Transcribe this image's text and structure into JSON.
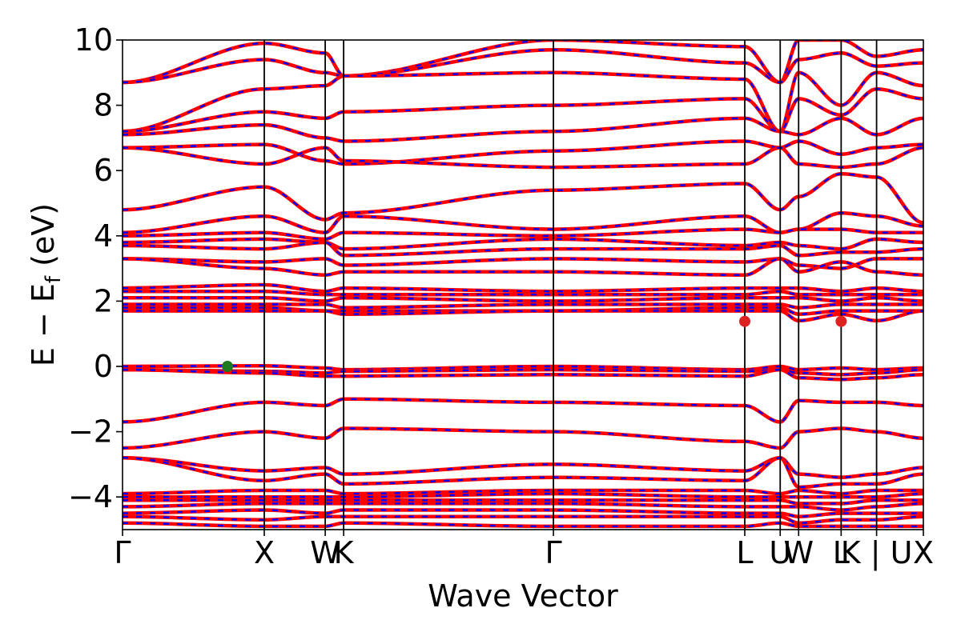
{
  "chart_data": {
    "type": "line",
    "title": "",
    "xlabel": "Wave Vector",
    "ylabel": {
      "main": "E − E",
      "sub": "f",
      "unit": " (eV)"
    },
    "ylim": [
      -5,
      10
    ],
    "yticks": [
      -4,
      -2,
      0,
      2,
      4,
      6,
      8,
      10
    ],
    "ytick_labels": [
      "−4",
      "−2",
      "0",
      "2",
      "4",
      "6",
      "8",
      "10"
    ],
    "kpath": {
      "labels": [
        "Γ",
        "X",
        "W",
        "K",
        "Γ",
        "L",
        "U",
        "W",
        "L",
        "K | U",
        "X"
      ],
      "positions": [
        0,
        1.0,
        1.43,
        1.56,
        3.04,
        4.39,
        4.64,
        4.77,
        5.07,
        5.32,
        5.65
      ]
    },
    "style": {
      "band_color_a": "#ff0000",
      "band_color_b": "#0000ff",
      "frame_color": "#000000"
    },
    "markers": [
      {
        "name": "vbm",
        "x": 0.74,
        "y": 0.0,
        "color": "#1f7a1f"
      },
      {
        "name": "cbm-1",
        "x": 4.39,
        "y": 1.38,
        "color": "#dd2222"
      },
      {
        "name": "cbm-2",
        "x": 5.07,
        "y": 1.38,
        "color": "#dd2222"
      }
    ],
    "series": [
      {
        "y": [
          8.7,
          9.9,
          9.6,
          8.9,
          10.0,
          9.8,
          8.7,
          10.0,
          10.0,
          9.5,
          9.7
        ]
      },
      {
        "y": [
          8.7,
          9.4,
          9.0,
          8.9,
          9.7,
          9.3,
          8.7,
          9.4,
          9.6,
          9.2,
          9.3
        ]
      },
      {
        "y": [
          7.2,
          8.5,
          8.6,
          8.9,
          9.0,
          8.8,
          7.2,
          9.0,
          8.0,
          9.0,
          8.6
        ]
      },
      {
        "y": [
          7.2,
          7.8,
          7.6,
          7.8,
          8.0,
          8.2,
          7.2,
          8.2,
          7.7,
          8.5,
          8.2
        ]
      },
      {
        "y": [
          7.1,
          7.4,
          7.0,
          6.9,
          7.2,
          7.6,
          7.2,
          7.1,
          7.6,
          7.1,
          7.6
        ]
      },
      {
        "y": [
          6.7,
          6.8,
          6.3,
          6.2,
          6.6,
          6.9,
          6.7,
          6.9,
          6.5,
          6.7,
          6.8
        ]
      },
      {
        "y": [
          6.7,
          6.2,
          6.7,
          6.3,
          6.1,
          6.2,
          6.7,
          6.2,
          6.1,
          6.2,
          6.7
        ]
      },
      {
        "y": [
          4.8,
          5.5,
          4.5,
          4.7,
          5.4,
          5.6,
          4.8,
          5.2,
          5.9,
          5.8,
          4.4
        ]
      },
      {
        "y": [
          4.1,
          4.6,
          4.1,
          4.6,
          4.2,
          4.6,
          4.1,
          4.2,
          4.7,
          4.6,
          4.3
        ]
      },
      {
        "y": [
          4.0,
          4.1,
          3.9,
          4.1,
          4.0,
          4.2,
          4.1,
          4.2,
          4.2,
          4.1,
          4.1
        ]
      },
      {
        "y": [
          3.8,
          3.9,
          3.8,
          3.6,
          3.9,
          3.7,
          3.8,
          3.7,
          3.6,
          3.9,
          3.8
        ]
      },
      {
        "y": [
          3.7,
          3.6,
          3.8,
          3.4,
          3.6,
          3.6,
          3.7,
          3.4,
          3.5,
          3.5,
          3.6
        ]
      },
      {
        "y": [
          3.3,
          3.2,
          3.3,
          3.1,
          3.3,
          3.2,
          3.3,
          3.1,
          3.0,
          3.3,
          3.3
        ]
      },
      {
        "y": [
          3.3,
          3.0,
          2.8,
          2.9,
          2.9,
          2.8,
          3.3,
          2.9,
          3.2,
          2.9,
          2.8
        ]
      },
      {
        "y": [
          2.4,
          2.5,
          2.3,
          2.4,
          2.3,
          2.4,
          2.4,
          2.4,
          2.3,
          2.4,
          2.3
        ]
      },
      {
        "y": [
          2.3,
          2.3,
          2.2,
          2.2,
          2.2,
          2.2,
          2.3,
          2.2,
          2.2,
          2.2,
          2.2
        ]
      },
      {
        "y": [
          2.1,
          2.1,
          2.0,
          2.1,
          2.0,
          2.1,
          2.1,
          2.1,
          2.0,
          2.1,
          2.0
        ]
      },
      {
        "y": [
          1.9,
          1.9,
          1.9,
          1.8,
          1.9,
          1.9,
          1.9,
          1.8,
          1.9,
          1.9,
          1.9
        ]
      },
      {
        "y": [
          1.8,
          1.8,
          1.7,
          1.7,
          1.7,
          1.8,
          1.8,
          1.6,
          1.7,
          1.7,
          1.7
        ]
      },
      {
        "y": [
          1.7,
          1.7,
          1.7,
          1.6,
          1.7,
          1.7,
          1.7,
          1.4,
          1.6,
          1.4,
          1.7
        ]
      },
      {
        "y": [
          0.0,
          0.02,
          -0.05,
          -0.1,
          0.0,
          -0.1,
          0.0,
          -0.1,
          -0.05,
          -0.1,
          -0.05
        ]
      },
      {
        "y": [
          -0.1,
          -0.15,
          -0.2,
          -0.15,
          -0.1,
          -0.15,
          -0.1,
          -0.2,
          -0.25,
          -0.2,
          -0.1
        ]
      },
      {
        "y": [
          -0.1,
          -0.2,
          -0.3,
          -0.3,
          -0.25,
          -0.3,
          -0.1,
          -0.35,
          -0.4,
          -0.35,
          -0.25
        ]
      },
      {
        "y": [
          -1.7,
          -1.1,
          -1.2,
          -1.0,
          -1.1,
          -1.2,
          -1.7,
          -1.05,
          -1.1,
          -1.1,
          -1.2
        ]
      },
      {
        "y": [
          -2.5,
          -2.0,
          -2.2,
          -1.9,
          -2.0,
          -2.3,
          -2.5,
          -2.0,
          -1.9,
          -2.0,
          -2.2
        ]
      },
      {
        "y": [
          -2.8,
          -3.2,
          -3.1,
          -3.3,
          -3.0,
          -3.2,
          -2.8,
          -3.3,
          -3.4,
          -3.3,
          -3.1
        ]
      },
      {
        "y": [
          -2.8,
          -3.5,
          -3.3,
          -3.6,
          -3.4,
          -3.5,
          -2.8,
          -3.7,
          -3.6,
          -3.6,
          -3.3
        ]
      },
      {
        "y": [
          -3.9,
          -3.8,
          -3.8,
          -3.9,
          -3.8,
          -3.8,
          -3.9,
          -3.8,
          -3.9,
          -3.8,
          -3.8
        ]
      },
      {
        "y": [
          -4.0,
          -4.0,
          -4.0,
          -4.0,
          -3.9,
          -4.0,
          -4.0,
          -4.0,
          -4.0,
          -4.0,
          -3.9
        ]
      },
      {
        "y": [
          -4.1,
          -4.1,
          -4.1,
          -4.1,
          -4.1,
          -4.1,
          -4.1,
          -4.2,
          -4.2,
          -4.1,
          -4.1
        ]
      },
      {
        "y": [
          -4.3,
          -4.2,
          -4.2,
          -4.2,
          -4.2,
          -4.3,
          -4.3,
          -4.3,
          -4.4,
          -4.3,
          -4.2
        ]
      },
      {
        "y": [
          -4.5,
          -4.4,
          -4.5,
          -4.4,
          -4.4,
          -4.5,
          -4.5,
          -4.6,
          -4.5,
          -4.5,
          -4.5
        ]
      },
      {
        "y": [
          -4.6,
          -4.7,
          -4.6,
          -4.6,
          -4.6,
          -4.6,
          -4.6,
          -4.8,
          -4.7,
          -4.7,
          -4.6
        ]
      },
      {
        "y": [
          -4.8,
          -4.9,
          -4.9,
          -4.8,
          -4.9,
          -4.9,
          -4.8,
          -4.9,
          -4.9,
          -4.9,
          -4.9
        ]
      }
    ]
  }
}
